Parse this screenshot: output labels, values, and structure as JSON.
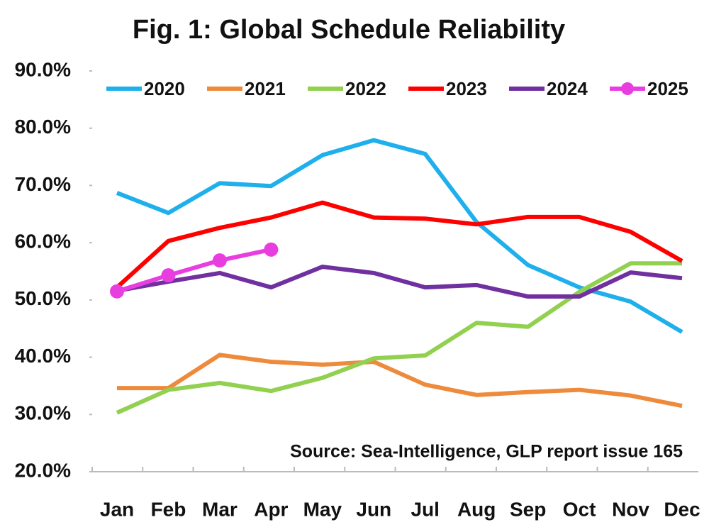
{
  "chart_data": {
    "type": "line",
    "title": "Fig. 1: Global Schedule Reliability",
    "annotation": "Source: Sea-Intelligence, GLP report issue 165",
    "categories": [
      "Jan",
      "Feb",
      "Mar",
      "Apr",
      "May",
      "Jun",
      "Jul",
      "Aug",
      "Sep",
      "Oct",
      "Nov",
      "Dec"
    ],
    "ylim": [
      20,
      90
    ],
    "yticks": [
      {
        "value": 20,
        "label": "20.0%"
      },
      {
        "value": 30,
        "label": "30.0%"
      },
      {
        "value": 40,
        "label": "40.0%"
      },
      {
        "value": 50,
        "label": "50.0%"
      },
      {
        "value": 60,
        "label": "60.0%"
      },
      {
        "value": 70,
        "label": "70.0%"
      },
      {
        "value": 80,
        "label": "80.0%"
      },
      {
        "value": 90,
        "label": "90.0%"
      }
    ],
    "grid": false,
    "legend": "top",
    "series": [
      {
        "name": "2020",
        "color": "#1fb0ec",
        "values": [
          68.7,
          65.2,
          70.4,
          69.9,
          75.3,
          77.9,
          75.5,
          63.6,
          56.1,
          52.2,
          49.7,
          44.4
        ]
      },
      {
        "name": "2021",
        "color": "#ee8a3c",
        "values": [
          34.6,
          34.6,
          40.4,
          39.2,
          38.7,
          39.2,
          35.2,
          33.4,
          33.9,
          34.3,
          33.3,
          31.5
        ]
      },
      {
        "name": "2022",
        "color": "#92d050",
        "values": [
          30.3,
          34.3,
          35.5,
          34.1,
          36.4,
          39.8,
          40.3,
          46.0,
          45.3,
          51.4,
          56.4,
          56.4
        ]
      },
      {
        "name": "2023",
        "color": "#ff0000",
        "values": [
          52.2,
          60.3,
          62.6,
          64.4,
          67.0,
          64.4,
          64.2,
          63.2,
          64.5,
          64.5,
          61.9,
          56.8
        ]
      },
      {
        "name": "2024",
        "color": "#7030a0",
        "values": [
          51.6,
          53.2,
          54.7,
          52.2,
          55.8,
          54.7,
          52.2,
          52.6,
          50.6,
          50.6,
          54.8,
          53.8
        ]
      },
      {
        "name": "2025",
        "color": "#e83ee0",
        "markers": true,
        "values": [
          51.5,
          54.3,
          56.9,
          58.8,
          null,
          null,
          null,
          null,
          null,
          null,
          null,
          null
        ]
      }
    ]
  }
}
